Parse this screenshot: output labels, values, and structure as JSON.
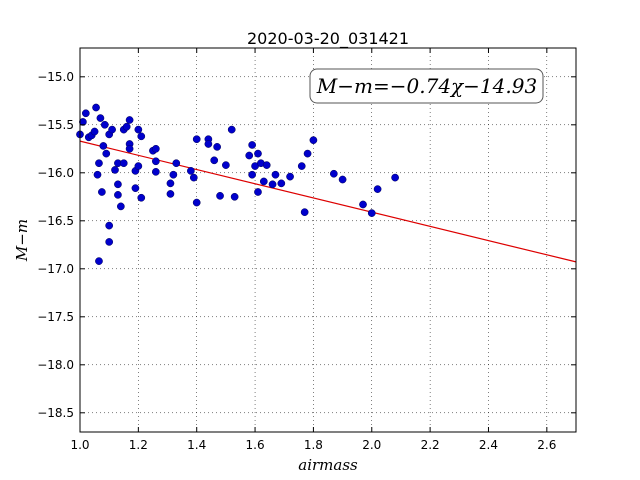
{
  "chart_data": {
    "type": "scatter",
    "title": "2020-03-20_031421",
    "xlabel": "airmass",
    "ylabel": "M−m",
    "annotation": "M−m=−0.74χ−14.93",
    "xlim": [
      1.0,
      2.7
    ],
    "ylim": [
      -18.7,
      -14.7
    ],
    "y_inverted": true,
    "xticks": [
      "1.0",
      "1.2",
      "1.4",
      "1.6",
      "1.8",
      "2.0",
      "2.2",
      "2.4",
      "2.6"
    ],
    "yticks": [
      "−15.0",
      "−15.5",
      "−16.0",
      "−16.5",
      "−17.0",
      "−17.5",
      "−18.0",
      "−18.5"
    ],
    "grid": true,
    "fit": {
      "slope": -0.74,
      "intercept": -14.93,
      "x_range": [
        1.0,
        2.7
      ],
      "color": "#dd0000"
    },
    "point_color": "#0000cc",
    "points": [
      [
        1.0,
        -15.6
      ],
      [
        1.01,
        -15.47
      ],
      [
        1.02,
        -15.38
      ],
      [
        1.03,
        -15.63
      ],
      [
        1.04,
        -15.61
      ],
      [
        1.05,
        -15.57
      ],
      [
        1.055,
        -15.32
      ],
      [
        1.06,
        -16.02
      ],
      [
        1.065,
        -15.9
      ],
      [
        1.07,
        -15.43
      ],
      [
        1.075,
        -16.2
      ],
      [
        1.065,
        -16.92
      ],
      [
        1.085,
        -15.5
      ],
      [
        1.08,
        -15.72
      ],
      [
        1.09,
        -15.8
      ],
      [
        1.1,
        -15.6
      ],
      [
        1.1,
        -16.55
      ],
      [
        1.1,
        -16.72
      ],
      [
        1.11,
        -15.55
      ],
      [
        1.12,
        -15.97
      ],
      [
        1.13,
        -15.9
      ],
      [
        1.13,
        -16.12
      ],
      [
        1.13,
        -16.23
      ],
      [
        1.14,
        -16.35
      ],
      [
        1.15,
        -15.55
      ],
      [
        1.15,
        -15.9
      ],
      [
        1.16,
        -15.52
      ],
      [
        1.17,
        -15.45
      ],
      [
        1.17,
        -15.7
      ],
      [
        1.17,
        -15.75
      ],
      [
        1.19,
        -15.98
      ],
      [
        1.19,
        -16.16
      ],
      [
        1.2,
        -15.55
      ],
      [
        1.2,
        -15.93
      ],
      [
        1.21,
        -15.62
      ],
      [
        1.21,
        -16.26
      ],
      [
        1.25,
        -15.77
      ],
      [
        1.26,
        -15.75
      ],
      [
        1.26,
        -15.88
      ],
      [
        1.26,
        -15.99
      ],
      [
        1.31,
        -16.11
      ],
      [
        1.31,
        -16.22
      ],
      [
        1.32,
        -16.02
      ],
      [
        1.33,
        -15.9
      ],
      [
        1.38,
        -15.98
      ],
      [
        1.39,
        -16.05
      ],
      [
        1.4,
        -16.31
      ],
      [
        1.4,
        -15.65
      ],
      [
        1.44,
        -15.65
      ],
      [
        1.44,
        -15.7
      ],
      [
        1.46,
        -15.87
      ],
      [
        1.47,
        -15.73
      ],
      [
        1.48,
        -16.24
      ],
      [
        1.5,
        -15.92
      ],
      [
        1.52,
        -15.55
      ],
      [
        1.53,
        -16.25
      ],
      [
        1.58,
        -15.82
      ],
      [
        1.59,
        -16.02
      ],
      [
        1.59,
        -15.71
      ],
      [
        1.6,
        -15.93
      ],
      [
        1.61,
        -16.2
      ],
      [
        1.61,
        -15.8
      ],
      [
        1.62,
        -15.9
      ],
      [
        1.64,
        -15.92
      ],
      [
        1.63,
        -16.09
      ],
      [
        1.66,
        -16.12
      ],
      [
        1.67,
        -16.02
      ],
      [
        1.69,
        -16.11
      ],
      [
        1.72,
        -16.04
      ],
      [
        1.76,
        -15.93
      ],
      [
        1.77,
        -16.41
      ],
      [
        1.78,
        -15.8
      ],
      [
        1.8,
        -15.66
      ],
      [
        1.87,
        -16.01
      ],
      [
        1.9,
        -16.07
      ],
      [
        1.97,
        -16.33
      ],
      [
        2.0,
        -16.42
      ],
      [
        2.02,
        -16.17
      ],
      [
        2.08,
        -16.05
      ]
    ]
  }
}
